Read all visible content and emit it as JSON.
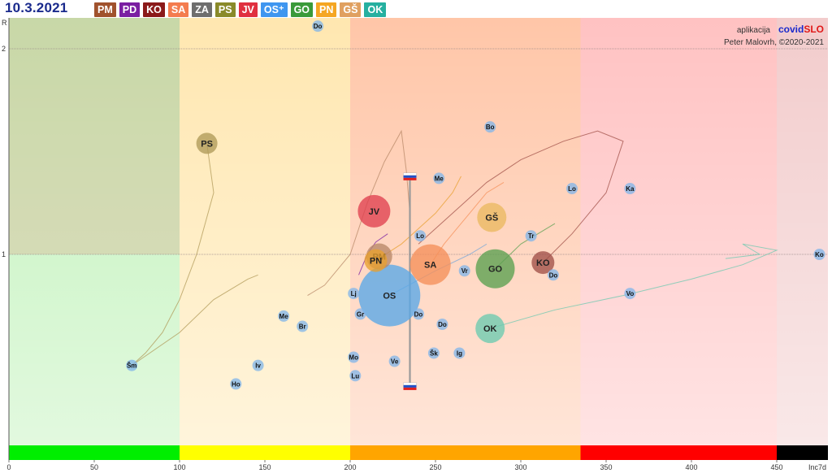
{
  "date": "10.3.2021",
  "regions": [
    {
      "label": "PM",
      "color": "#a0522d"
    },
    {
      "label": "PD",
      "color": "#7b1fa2"
    },
    {
      "label": "KO",
      "color": "#8b1a1a"
    },
    {
      "label": "SA",
      "color": "#f47c4f"
    },
    {
      "label": "ZA",
      "color": "#6e6e6e"
    },
    {
      "label": "PS",
      "color": "#8a8a2a"
    },
    {
      "label": "JV",
      "color": "#e03040"
    },
    {
      "label": "OS⁺",
      "color": "#3f96f0"
    },
    {
      "label": "GO",
      "color": "#3a9a3a"
    },
    {
      "label": "PN",
      "color": "#f5a623"
    },
    {
      "label": "GŠ",
      "color": "#e0a060"
    },
    {
      "label": "OK",
      "color": "#26b0a0"
    }
  ],
  "credits": {
    "prefix": "aplikacija",
    "brand_a": "covid",
    "brand_b": "SLO",
    "author": "Peter Malovrh, ©2020-2021"
  },
  "chart_data": {
    "type": "scatter",
    "xlabel": "Inc7d",
    "ylabel": "R",
    "xlim": [
      0,
      480
    ],
    "x_ticks": [
      0,
      50,
      100,
      150,
      200,
      250,
      300,
      350,
      400,
      450
    ],
    "y_ticks": [
      1,
      2
    ],
    "bands": [
      {
        "from": 0,
        "to": 100,
        "color": "#00ee00"
      },
      {
        "from": 100,
        "to": 200,
        "color": "#ffff00"
      },
      {
        "from": 200,
        "to": 335,
        "color": "#ffa500"
      },
      {
        "from": 335,
        "to": 450,
        "color": "#ff0000"
      },
      {
        "from": 450,
        "to": 480,
        "color": "#000000"
      }
    ],
    "regions": [
      {
        "label": "PS",
        "x": 116,
        "y": 1.54,
        "color": "#b09a58"
      },
      {
        "label": "JV",
        "x": 214,
        "y": 1.21,
        "color": "#e04050"
      },
      {
        "label": "GŠ",
        "x": 283,
        "y": 1.18,
        "color": "#ebb860"
      },
      {
        "label": "PM",
        "x": 217,
        "y": 0.99,
        "color": "#b88868"
      },
      {
        "label": "PN",
        "x": 215,
        "y": 0.97,
        "color": "#e8a030"
      },
      {
        "label": "SA",
        "x": 247,
        "y": 0.95,
        "color": "#f5905a"
      },
      {
        "label": "GO",
        "x": 285,
        "y": 0.93,
        "color": "#5aa050"
      },
      {
        "label": "KO",
        "x": 313,
        "y": 0.96,
        "color": "#a05048"
      },
      {
        "label": "OS",
        "x": 223,
        "y": 0.8,
        "color": "#58a8e8"
      },
      {
        "label": "OK",
        "x": 282,
        "y": 0.64,
        "color": "#6ccab0"
      }
    ],
    "municipalities": [
      {
        "label": "Do",
        "x": 181,
        "y": 2.11
      },
      {
        "label": "Bo",
        "x": 282,
        "y": 1.62
      },
      {
        "label": "Me",
        "x": 252,
        "y": 1.37
      },
      {
        "label": "Lo",
        "x": 330,
        "y": 1.32
      },
      {
        "label": "Ka",
        "x": 364,
        "y": 1.32
      },
      {
        "label": "Lo",
        "x": 241,
        "y": 1.09
      },
      {
        "label": "Tr",
        "x": 306,
        "y": 1.09
      },
      {
        "label": "Ko",
        "x": 475,
        "y": 1.0
      },
      {
        "label": "Vr",
        "x": 267,
        "y": 0.92
      },
      {
        "label": "Do",
        "x": 319,
        "y": 0.9
      },
      {
        "label": "Lj",
        "x": 202,
        "y": 0.81
      },
      {
        "label": "Vo",
        "x": 364,
        "y": 0.81
      },
      {
        "label": "Gr",
        "x": 206,
        "y": 0.71
      },
      {
        "label": "Do",
        "x": 240,
        "y": 0.71
      },
      {
        "label": "Me",
        "x": 161,
        "y": 0.7
      },
      {
        "label": "Do",
        "x": 254,
        "y": 0.66
      },
      {
        "label": "Br",
        "x": 172,
        "y": 0.65
      },
      {
        "label": "Šk",
        "x": 249,
        "y": 0.52
      },
      {
        "label": "Ig",
        "x": 264,
        "y": 0.52
      },
      {
        "label": "Mo",
        "x": 202,
        "y": 0.5
      },
      {
        "label": "Ve",
        "x": 226,
        "y": 0.48
      },
      {
        "label": "Šm",
        "x": 72,
        "y": 0.46
      },
      {
        "label": "Iv",
        "x": 146,
        "y": 0.46
      },
      {
        "label": "Lu",
        "x": 203,
        "y": 0.41
      },
      {
        "label": "Ho",
        "x": 133,
        "y": 0.37
      }
    ],
    "slovenia": {
      "x": 235,
      "y_high": 1.38,
      "y_low": 0.36
    }
  }
}
